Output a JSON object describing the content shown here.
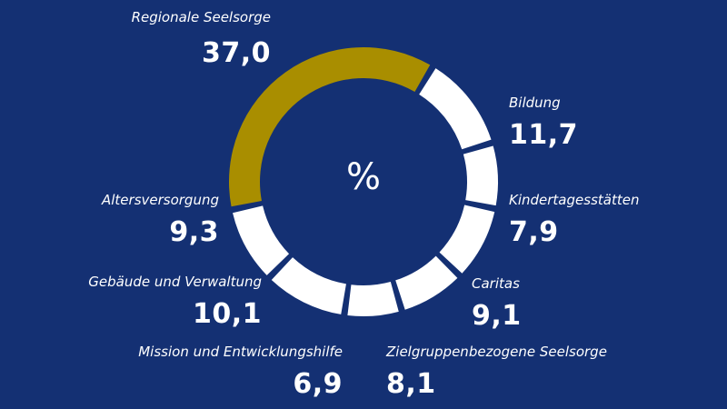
{
  "chart_data": {
    "type": "pie",
    "unit": "%",
    "slices": [
      {
        "label": "Regionale Seelsorge",
        "value": 37.0,
        "value_text": "37,0",
        "color": "#A98E00"
      },
      {
        "label": "Bildung",
        "value": 11.7,
        "value_text": "11,7",
        "color": "#FFFFFF"
      },
      {
        "label": "Kindertagesstätten",
        "value": 7.9,
        "value_text": "7,9",
        "color": "#FFFFFF"
      },
      {
        "label": "Caritas",
        "value": 9.1,
        "value_text": "9,1",
        "color": "#FFFFFF"
      },
      {
        "label": "Zielgruppenbezogene Seelsorge",
        "value": 8.1,
        "value_text": "8,1",
        "color": "#FFFFFF"
      },
      {
        "label": "Mission und Entwicklungshilfe",
        "value": 6.9,
        "value_text": "6,9",
        "color": "#FFFFFF"
      },
      {
        "label": "Gebäude und Verwaltung",
        "value": 10.1,
        "value_text": "10,1",
        "color": "#FFFFFF"
      },
      {
        "label": "Altersversorgung",
        "value": 9.3,
        "value_text": "9,3",
        "color": "#FFFFFF"
      }
    ]
  },
  "colors": {
    "background": "#143073",
    "highlight": "#A98E00",
    "segment": "#FFFFFF"
  }
}
